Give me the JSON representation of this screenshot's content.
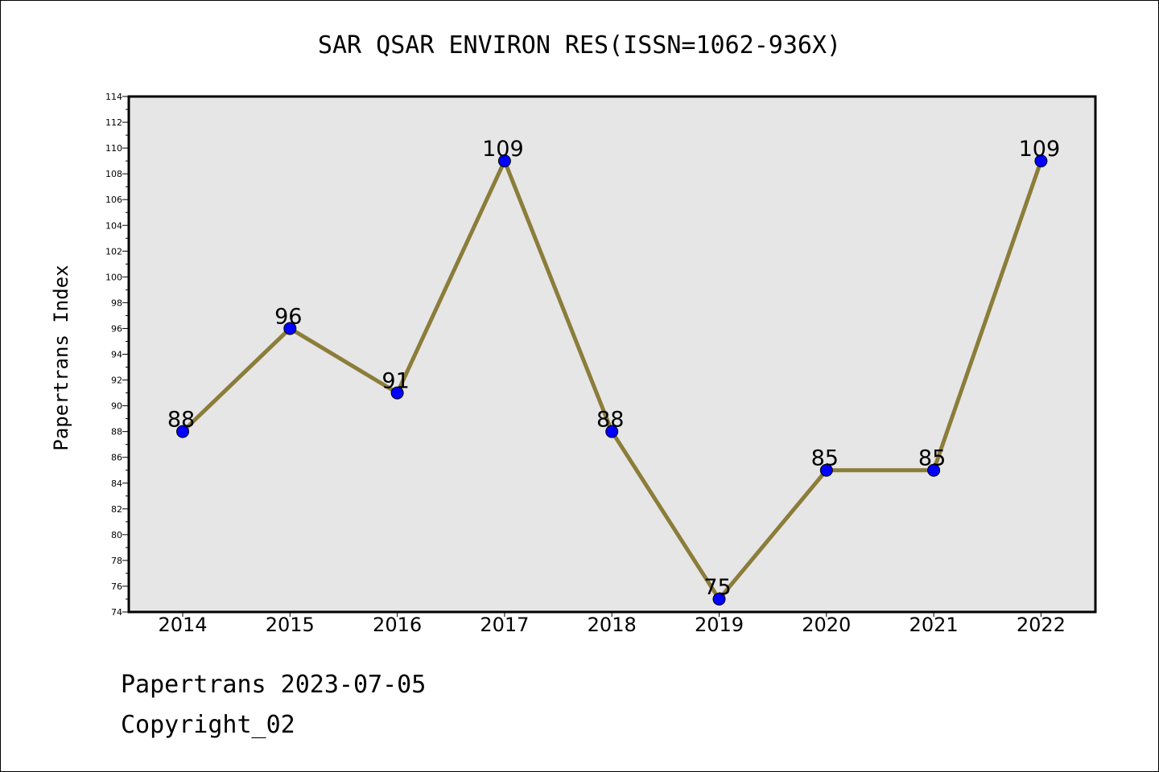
{
  "chart_data": {
    "type": "line",
    "title": "SAR QSAR ENVIRON RES(ISSN=1062-936X)",
    "xlabel": "",
    "ylabel": "Papertrans Index",
    "categories": [
      "2014",
      "2015",
      "2016",
      "2017",
      "2018",
      "2019",
      "2020",
      "2021",
      "2022"
    ],
    "series": [
      {
        "name": "Papertrans Index",
        "values": [
          88,
          96,
          91,
          109,
          88,
          75,
          85,
          85,
          109
        ]
      }
    ],
    "ylim": [
      74,
      114
    ],
    "ytick_step": 2,
    "grid": false,
    "data_labels": true,
    "colors": {
      "line": "#8b7d3a",
      "marker": "#0000ff",
      "plot_bg": "#e6e6e6"
    }
  },
  "footer": {
    "date_text": "Papertrans 2023-07-05",
    "copyright_text": "Copyright_02"
  }
}
